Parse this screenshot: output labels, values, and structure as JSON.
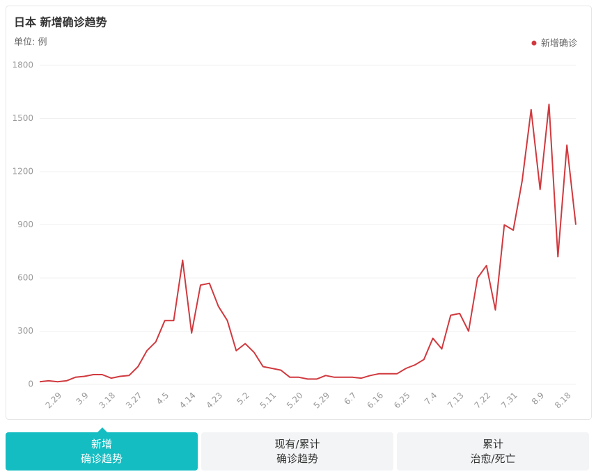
{
  "chart_data": {
    "type": "line",
    "title": "日本 新增确诊趋势",
    "unit": "单位: 例",
    "categories": [
      null,
      null,
      "2.29",
      null,
      null,
      "3.9",
      null,
      null,
      "3.18",
      null,
      null,
      "3.27",
      null,
      null,
      "4.5",
      null,
      null,
      "4.14",
      null,
      null,
      "4.23",
      null,
      null,
      "5.2",
      null,
      null,
      "5.11",
      null,
      null,
      "5.20",
      null,
      null,
      "5.29",
      null,
      null,
      "6.7",
      null,
      null,
      "6.16",
      null,
      null,
      "6.25",
      null,
      null,
      "7.4",
      null,
      null,
      "7.13",
      null,
      null,
      "7.22",
      null,
      null,
      "7.31",
      null,
      null,
      "8.9",
      null,
      null,
      "8.18",
      null
    ],
    "series": [
      {
        "name": "新增确诊",
        "color": "#d0393e",
        "values": [
          15,
          20,
          15,
          20,
          40,
          45,
          55,
          55,
          35,
          45,
          50,
          100,
          190,
          240,
          360,
          360,
          700,
          290,
          560,
          570,
          440,
          360,
          190,
          230,
          180,
          100,
          90,
          80,
          40,
          40,
          30,
          30,
          50,
          40,
          40,
          40,
          35,
          50,
          60,
          60,
          60,
          90,
          110,
          140,
          260,
          200,
          390,
          400,
          300,
          600,
          670,
          420,
          900,
          870,
          1150,
          1550,
          1100,
          1580,
          720,
          1350,
          900
        ]
      }
    ],
    "ylim": [
      0,
      1800
    ],
    "yticks": [
      0,
      300,
      600,
      900,
      1200,
      1500,
      1800
    ],
    "grid": true,
    "legend": "top-right"
  },
  "tabs": [
    [
      "新增",
      "确诊趋势"
    ],
    [
      "现有/累计",
      "确诊趋势"
    ],
    [
      "累计",
      "治愈/死亡"
    ]
  ],
  "active_tab": 0
}
